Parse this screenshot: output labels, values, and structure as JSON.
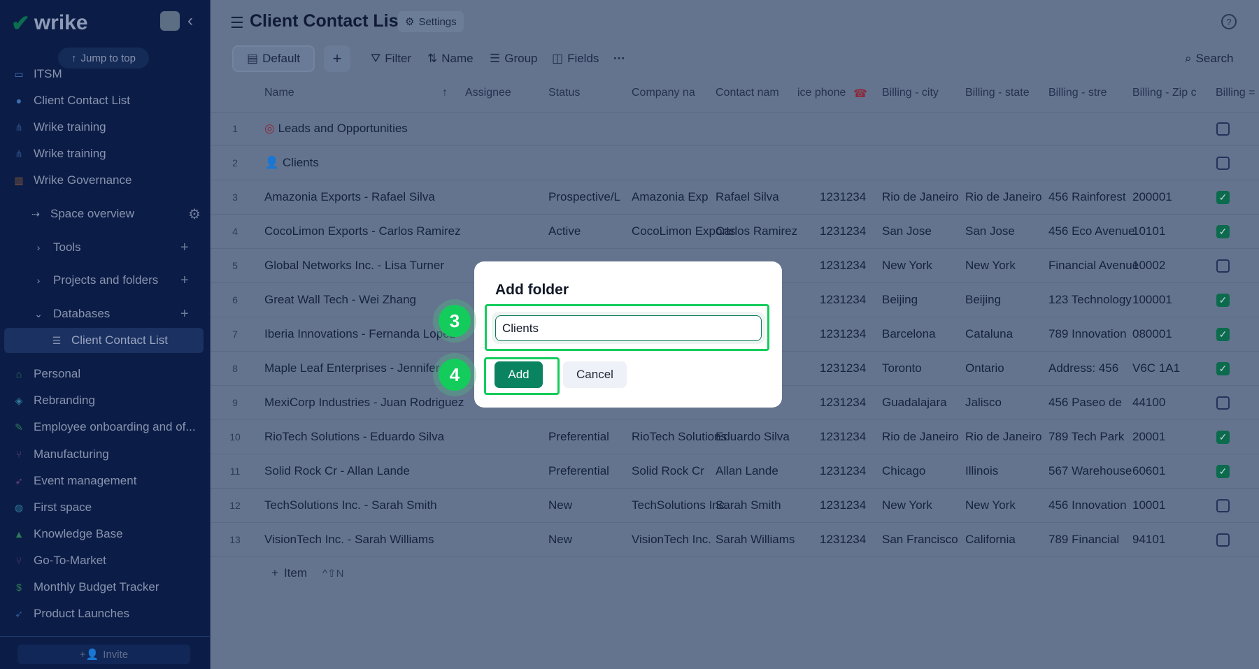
{
  "sidebar": {
    "logo": "wrike",
    "jump_to_top": "Jump to top",
    "items": [
      {
        "label": "ITSM",
        "icon": "monitor-gear-icon",
        "color": "#3d6db0"
      },
      {
        "label": "Client Contact List",
        "icon": "user-icon",
        "color": "#3d6db0"
      },
      {
        "label": "Wrike training",
        "icon": "hierarchy-icon",
        "color": "#2f4c86"
      },
      {
        "label": "Wrike training",
        "icon": "hierarchy-icon",
        "color": "#2f4c86"
      },
      {
        "label": "Wrike Governance",
        "icon": "shelf-icon",
        "color": "#8a5a3a"
      },
      {
        "label": "Space overview",
        "icon": "space-overview-icon"
      },
      {
        "label": "Tools",
        "icon": "chevron-right-icon"
      },
      {
        "label": "Projects and folders",
        "icon": "chevron-right-icon"
      },
      {
        "label": "Databases",
        "icon": "chevron-down-icon"
      },
      {
        "label": "Client Contact List",
        "icon": "list-icon",
        "selected": true
      },
      {
        "label": "Personal",
        "icon": "home-icon",
        "color": "#2f7a57"
      },
      {
        "label": "Rebranding",
        "icon": "cube-icon",
        "color": "#2f7a9a"
      },
      {
        "label": "Employee onboarding and of...",
        "icon": "user-edit-icon",
        "color": "#2f7a57"
      },
      {
        "label": "Manufacturing",
        "icon": "branch-icon",
        "color": "#6b3d7a"
      },
      {
        "label": "Event management",
        "icon": "rocket-icon",
        "color": "#6b3d7a"
      },
      {
        "label": "First space",
        "icon": "planet-icon",
        "color": "#2f7a9a"
      },
      {
        "label": "Knowledge Base",
        "icon": "graduation-cap-icon",
        "color": "#2f7a57"
      },
      {
        "label": "Go-To-Market",
        "icon": "branch-icon",
        "color": "#6b3d7a"
      },
      {
        "label": "Monthly Budget Tracker",
        "icon": "dollar-icon",
        "color": "#2f7a57"
      },
      {
        "label": "Product Launches",
        "icon": "rocket-icon",
        "color": "#2f5a9a"
      }
    ],
    "invite": "Invite"
  },
  "header": {
    "title": "Client Contact List",
    "settings": "Settings",
    "help": "?"
  },
  "toolbar": {
    "default_view": "Default",
    "add": "+",
    "filter": "Filter",
    "sort": "Name",
    "group": "Group",
    "fields": "Fields",
    "more": "···",
    "search": "Search"
  },
  "table": {
    "columns": [
      "Name",
      "Assignee",
      "Status",
      "Company na",
      "Contact nam",
      "ice phone",
      "Billing - city",
      "Billing - state",
      "Billing - stre",
      "Billing - Zip c",
      "Billing ="
    ],
    "rows": [
      {
        "n": "1",
        "name": "Leads and Opportunities",
        "icon": "target-icon",
        "checked": false
      },
      {
        "n": "2",
        "name": "Clients",
        "icon": "person-icon",
        "checked": false
      },
      {
        "n": "3",
        "name": "Amazonia Exports - Rafael Silva",
        "status": "Prospective/L",
        "company": "Amazonia Exp",
        "contact": "Rafael Silva",
        "phone": "1231234",
        "city": "Rio de Janeiro",
        "state": "Rio de Janeiro",
        "street": "456 Rainforest",
        "zip": "200001",
        "checked": true
      },
      {
        "n": "4",
        "name": "CocoLimon Exports - Carlos Ramirez",
        "status": "Active",
        "company": "CocoLimon Exports",
        "contact": "Carlos Ramirez",
        "phone": "1231234",
        "city": "San Jose",
        "state": "San Jose",
        "street": "456 Eco Avenue",
        "zip": "10101",
        "checked": true
      },
      {
        "n": "5",
        "name": "Global Networks Inc. - Lisa Turner",
        "phone": "1231234",
        "city": "New York",
        "state": "New York",
        "street": "Financial Avenue",
        "zip": "10002",
        "checked": false
      },
      {
        "n": "6",
        "name": "Great Wall Tech - Wei Zhang",
        "phone": "1231234",
        "city": "Beijing",
        "state": "Beijing",
        "street": "123 Technology",
        "zip": "100001",
        "checked": true
      },
      {
        "n": "7",
        "name": "Iberia Innovations - Fernanda Lopez",
        "phone": "1231234",
        "city": "Barcelona",
        "state": "Cataluna",
        "street": "789 Innovation",
        "zip": "080001",
        "checked": true
      },
      {
        "n": "8",
        "name": "Maple Leaf Enterprises - Jennifer",
        "phone": "1231234",
        "city": "Toronto",
        "state": "Ontario",
        "street": "Address: 456",
        "zip": "V6C 1A1",
        "checked": true
      },
      {
        "n": "9",
        "name": "MexiCorp Industries - Juan Rodriguez",
        "phone": "1231234",
        "city": "Guadalajara",
        "state": "Jalisco",
        "street": "456 Paseo de",
        "zip": "44100",
        "checked": false
      },
      {
        "n": "10",
        "name": "RioTech Solutions - Eduardo Silva",
        "status": "Preferential",
        "company": "RioTech Solutions",
        "contact": "Eduardo Silva",
        "phone": "1231234",
        "city": "Rio de Janeiro",
        "state": "Rio de Janeiro",
        "street": "789 Tech Park",
        "zip": "20001",
        "checked": true
      },
      {
        "n": "11",
        "name": "Solid Rock Cr - Allan Lande",
        "status": "Preferential",
        "company": "Solid Rock Cr",
        "contact": "Allan Lande",
        "phone": "1231234",
        "city": "Chicago",
        "state": "Illinois",
        "street": "567 Warehouse",
        "zip": "60601",
        "checked": true
      },
      {
        "n": "12",
        "name": "TechSolutions Inc. - Sarah Smith",
        "status": "New",
        "company": "TechSolutions Inc.",
        "contact": "Sarah Smith",
        "phone": "1231234",
        "city": "New York",
        "state": "New York",
        "street": "456 Innovation",
        "zip": "10001",
        "checked": false
      },
      {
        "n": "13",
        "name": "VisionTech Inc. - Sarah Williams",
        "status": "New",
        "company": "VisionTech Inc.",
        "contact": "Sarah Williams",
        "phone": "1231234",
        "city": "San Francisco",
        "state": "California",
        "street": "789 Financial",
        "zip": "94101",
        "checked": false
      }
    ],
    "add_item": "Item",
    "add_item_shortcut": "^⇧N"
  },
  "dialog": {
    "title": "Add folder",
    "input_value": "Clients",
    "add": "Add",
    "cancel": "Cancel"
  },
  "annotations": [
    {
      "step": "3"
    },
    {
      "step": "4"
    }
  ],
  "colors": {
    "accent": "#0a8460",
    "highlight": "#14cc5c",
    "sidebar_bg": "#0b1d47"
  }
}
